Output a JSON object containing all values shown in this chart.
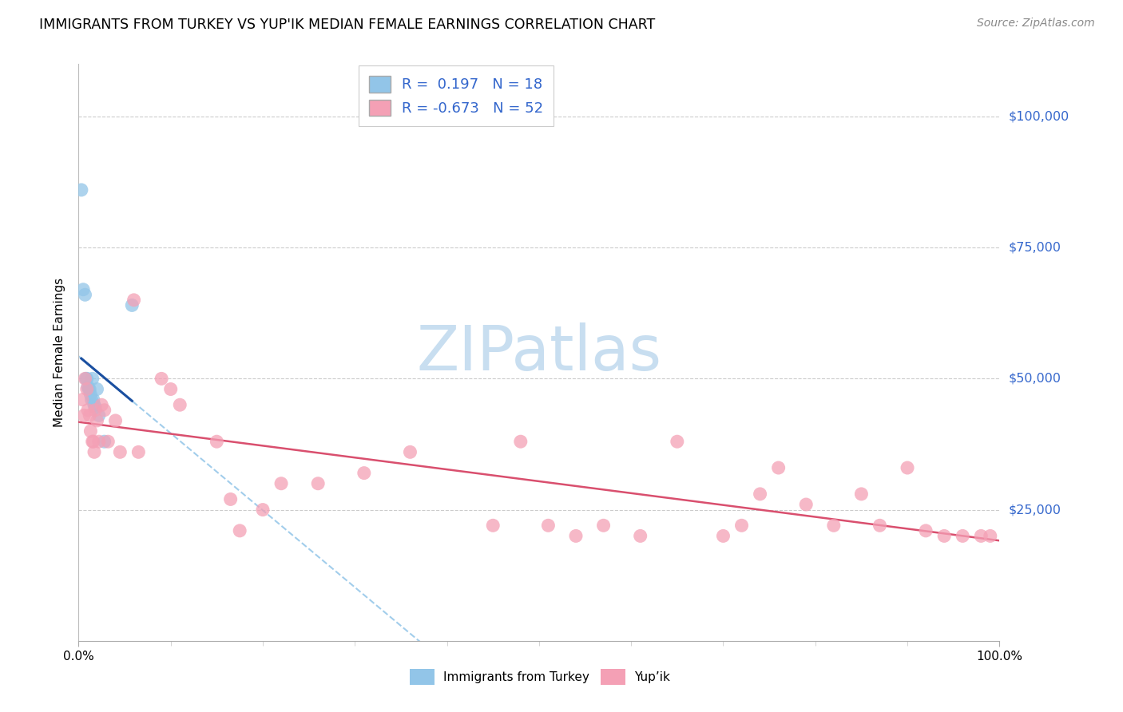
{
  "title": "IMMIGRANTS FROM TURKEY VS YUP'IK MEDIAN FEMALE EARNINGS CORRELATION CHART",
  "source": "Source: ZipAtlas.com",
  "ylabel": "Median Female Earnings",
  "ytick_values": [
    100000,
    75000,
    50000,
    25000
  ],
  "ytick_labels": [
    "$100,000",
    "$75,000",
    "$50,000",
    "$25,000"
  ],
  "ylim": [
    0,
    110000
  ],
  "xlim": [
    0.0,
    1.0
  ],
  "turkey_dot_color": "#92C5E8",
  "yupik_dot_color": "#F4A0B5",
  "turkey_line_color": "#1A4FA0",
  "yupik_line_color": "#D94F6E",
  "turkey_dash_color": "#92C5E8",
  "grid_color": "#CCCCCC",
  "watermark_color": "#C8DEF0",
  "right_label_color": "#3366CC",
  "legend_r_color": "#3366CC",
  "turkey_x": [
    0.003,
    0.005,
    0.007,
    0.008,
    0.009,
    0.01,
    0.011,
    0.012,
    0.013,
    0.014,
    0.015,
    0.016,
    0.017,
    0.018,
    0.02,
    0.022,
    0.028,
    0.058
  ],
  "turkey_y": [
    86000,
    67000,
    66000,
    50000,
    50000,
    48500,
    48000,
    48000,
    47000,
    46000,
    50000,
    46000,
    45000,
    44500,
    48000,
    43000,
    38000,
    64000
  ],
  "yupik_x": [
    0.004,
    0.006,
    0.007,
    0.009,
    0.01,
    0.012,
    0.013,
    0.015,
    0.016,
    0.017,
    0.018,
    0.02,
    0.022,
    0.025,
    0.028,
    0.032,
    0.04,
    0.045,
    0.06,
    0.065,
    0.09,
    0.1,
    0.11,
    0.15,
    0.165,
    0.175,
    0.2,
    0.22,
    0.26,
    0.31,
    0.36,
    0.45,
    0.48,
    0.51,
    0.54,
    0.57,
    0.61,
    0.65,
    0.7,
    0.72,
    0.74,
    0.76,
    0.79,
    0.82,
    0.85,
    0.87,
    0.9,
    0.92,
    0.94,
    0.96,
    0.98,
    0.99
  ],
  "yupik_y": [
    46000,
    43000,
    50000,
    48000,
    44000,
    43000,
    40000,
    38000,
    38000,
    36000,
    44000,
    42000,
    38000,
    45000,
    44000,
    38000,
    42000,
    36000,
    65000,
    36000,
    50000,
    48000,
    45000,
    38000,
    27000,
    21000,
    25000,
    30000,
    30000,
    32000,
    36000,
    22000,
    38000,
    22000,
    20000,
    22000,
    20000,
    38000,
    20000,
    22000,
    28000,
    33000,
    26000,
    22000,
    28000,
    22000,
    33000,
    21000,
    20000,
    20000,
    20000,
    20000
  ],
  "legend_label1": "R =  0.197   N = 18",
  "legend_label2": "R = -0.673   N = 52",
  "bottom_label1": "Immigrants from Turkey",
  "bottom_label2": "Yup’ik"
}
